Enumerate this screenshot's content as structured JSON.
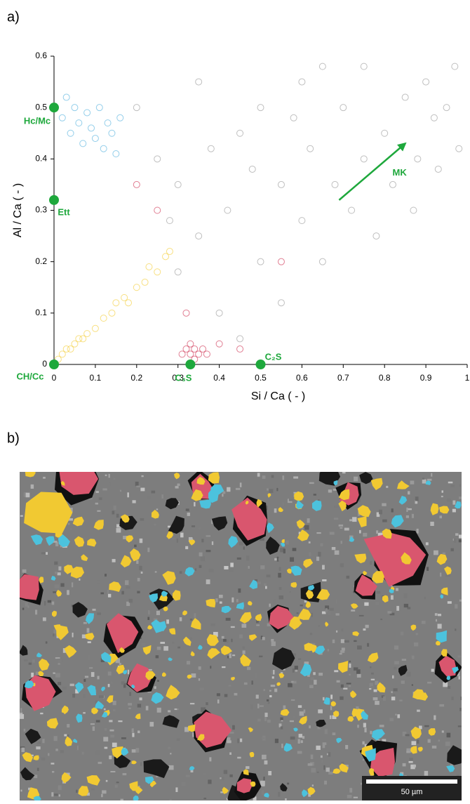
{
  "panel_labels": [
    "a)",
    "b)"
  ],
  "chart_data": {
    "type": "scatter",
    "xlabel": "Si / Ca ( - )",
    "ylabel": "Al / Ca ( - )",
    "xlim": [
      0,
      1
    ],
    "ylim": [
      0,
      0.6
    ],
    "xticks": [
      0,
      0.1,
      0.2,
      0.3,
      0.4,
      0.5,
      0.6,
      0.7,
      0.8,
      0.9,
      1
    ],
    "yticks": [
      0,
      0.1,
      0.2,
      0.3,
      0.4,
      0.5,
      0.6
    ],
    "series": [
      {
        "color": "#8a8a8a",
        "x": [
          0.3,
          0.35,
          0.4,
          0.42,
          0.45,
          0.5,
          0.5,
          0.55,
          0.55,
          0.6,
          0.6,
          0.62,
          0.65,
          0.68,
          0.7,
          0.72,
          0.75,
          0.75,
          0.78,
          0.8,
          0.82,
          0.85,
          0.88,
          0.9,
          0.92,
          0.95,
          0.97,
          0.98,
          0.3,
          0.25,
          0.2,
          0.35,
          0.28,
          0.38,
          0.48,
          0.58,
          0.65,
          0.87,
          0.93,
          0.45
        ],
        "y": [
          0.18,
          0.25,
          0.1,
          0.3,
          0.45,
          0.2,
          0.5,
          0.35,
          0.12,
          0.28,
          0.55,
          0.42,
          0.2,
          0.35,
          0.5,
          0.3,
          0.4,
          0.58,
          0.25,
          0.45,
          0.35,
          0.52,
          0.4,
          0.55,
          0.48,
          0.5,
          0.58,
          0.42,
          0.35,
          0.4,
          0.5,
          0.55,
          0.28,
          0.42,
          0.38,
          0.48,
          0.58,
          0.3,
          0.38,
          0.05
        ]
      },
      {
        "color": "#3aa6d8",
        "x": [
          0.02,
          0.03,
          0.04,
          0.05,
          0.06,
          0.07,
          0.08,
          0.09,
          0.1,
          0.11,
          0.12,
          0.13,
          0.14,
          0.15,
          0.16
        ],
        "y": [
          0.48,
          0.52,
          0.45,
          0.5,
          0.47,
          0.43,
          0.49,
          0.46,
          0.44,
          0.5,
          0.42,
          0.47,
          0.45,
          0.41,
          0.48
        ]
      },
      {
        "color": "#f2c61c",
        "x": [
          0.01,
          0.02,
          0.03,
          0.04,
          0.05,
          0.06,
          0.07,
          0.08,
          0.1,
          0.12,
          0.14,
          0.15,
          0.17,
          0.18,
          0.2,
          0.22,
          0.23,
          0.25,
          0.27,
          0.28
        ],
        "y": [
          0.01,
          0.02,
          0.03,
          0.03,
          0.04,
          0.05,
          0.05,
          0.06,
          0.07,
          0.09,
          0.1,
          0.12,
          0.13,
          0.12,
          0.15,
          0.16,
          0.19,
          0.18,
          0.21,
          0.22
        ]
      },
      {
        "color": "#c8163a",
        "x": [
          0.31,
          0.32,
          0.33,
          0.34,
          0.35,
          0.36,
          0.33,
          0.34,
          0.37,
          0.4,
          0.45,
          0.32,
          0.2,
          0.25,
          0.55
        ],
        "y": [
          0.02,
          0.03,
          0.02,
          0.03,
          0.02,
          0.03,
          0.04,
          0.01,
          0.02,
          0.04,
          0.03,
          0.1,
          0.35,
          0.3,
          0.2
        ]
      }
    ],
    "annotations": [
      {
        "text": "CH/Cc",
        "x": 0,
        "y": 0
      },
      {
        "text": "C₃S",
        "x": 0.33,
        "y": 0
      },
      {
        "text": "C₂S",
        "x": 0.5,
        "y": 0
      },
      {
        "text": "Ett",
        "x": 0,
        "y": 0.32
      },
      {
        "text": "Hc/Mc",
        "x": 0,
        "y": 0.5
      }
    ],
    "arrow": {
      "text": "MK",
      "x": [
        0.69,
        0.85
      ],
      "y": [
        0.32,
        0.43
      ]
    }
  },
  "micrograph": {
    "scale_bar": "50 µm"
  }
}
